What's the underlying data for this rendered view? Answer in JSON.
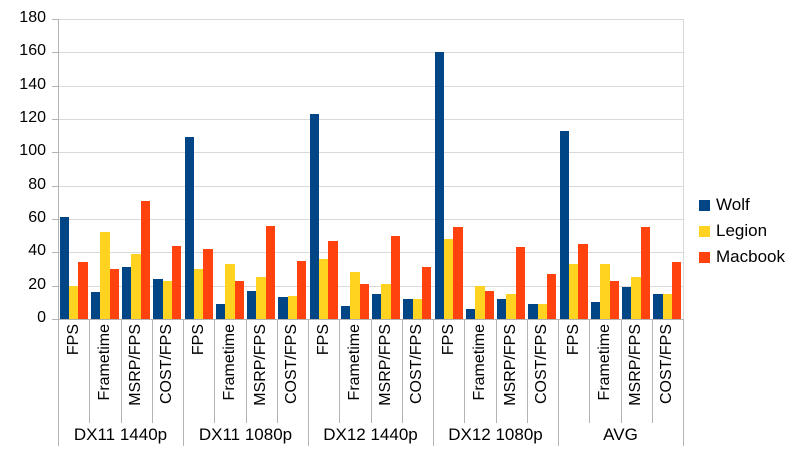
{
  "chart_data": {
    "type": "bar",
    "title": "",
    "groups": [
      "DX11 1440p",
      "DX11 1080p",
      "DX12 1440p",
      "DX12 1080p",
      "AVG"
    ],
    "categories_per_group": [
      "FPS",
      "Frametime",
      "MSRP/FPS",
      "COST/FPS"
    ],
    "series": [
      {
        "name": "Wolf",
        "color": "#004586",
        "values": [
          [
            61,
            16,
            31,
            24
          ],
          [
            109,
            9,
            17,
            13
          ],
          [
            123,
            8,
            15,
            12
          ],
          [
            160,
            6,
            12,
            9
          ],
          [
            113,
            10,
            19,
            15
          ]
        ]
      },
      {
        "name": "Legion",
        "color": "#FFD320",
        "values": [
          [
            20,
            52,
            39,
            23
          ],
          [
            30,
            33,
            25,
            14
          ],
          [
            36,
            28,
            21,
            12
          ],
          [
            48,
            20,
            15,
            9
          ],
          [
            33,
            33,
            25,
            15
          ]
        ]
      },
      {
        "name": "Macbook",
        "color": "#FF420E",
        "values": [
          [
            34,
            30,
            71,
            44
          ],
          [
            42,
            23,
            56,
            35
          ],
          [
            47,
            21,
            50,
            31
          ],
          [
            55,
            17,
            43,
            27
          ],
          [
            45,
            23,
            55,
            34
          ]
        ]
      }
    ],
    "y_axis": {
      "min": 0,
      "max": 180,
      "step": 20,
      "ticks": [
        "0",
        "20",
        "40",
        "60",
        "80",
        "100",
        "120",
        "140",
        "160",
        "180"
      ]
    },
    "legend": {
      "position": "right",
      "entries": [
        "Wolf",
        "Legion",
        "Macbook"
      ]
    },
    "grid": "horizontal",
    "xlabel": "",
    "ylabel": ""
  },
  "colors": {
    "background": "#ffffff",
    "gridline": "#d9d9d9",
    "axis": "#b3b3b3",
    "text": "#000000"
  }
}
